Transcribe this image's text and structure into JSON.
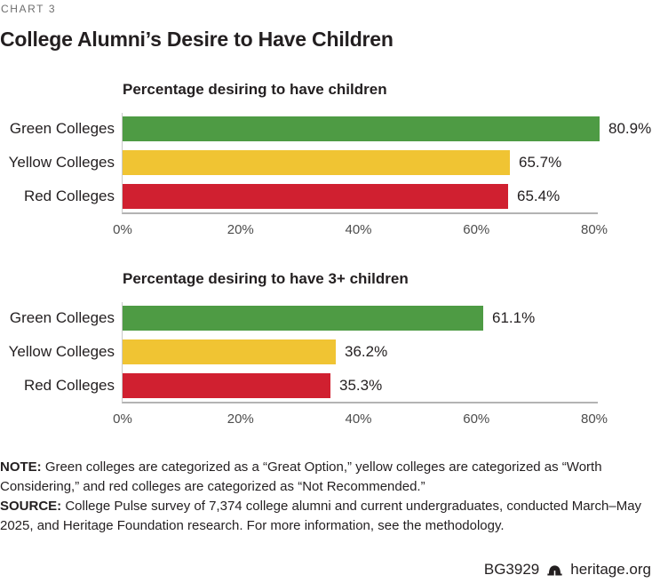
{
  "header": {
    "kicker": "CHART 3",
    "title": "College Alumni’s Desire to Have Children"
  },
  "colors": {
    "green": "#4e9b44",
    "yellow": "#f0c433",
    "red": "#d02030",
    "text": "#231f20",
    "kicker_gray": "#6e6e6e",
    "axis_line": "#b3b3b3",
    "tick_text": "#4c4c4c"
  },
  "chart_data": [
    {
      "type": "bar",
      "orientation": "horizontal",
      "title": "Percentage desiring to have children",
      "categories": [
        "Green Colleges",
        "Yellow Colleges",
        "Red Colleges"
      ],
      "values": [
        80.9,
        65.7,
        65.4
      ],
      "value_labels": [
        "80.9%",
        "65.7%",
        "65.4%"
      ],
      "bar_colors": [
        "#4e9b44",
        "#f0c433",
        "#d02030"
      ],
      "xlim": [
        0,
        80
      ],
      "tick_values": [
        0,
        20,
        40,
        60,
        80
      ],
      "ticks": [
        "0%",
        "20%",
        "40%",
        "60%",
        "80%"
      ],
      "grid": false,
      "legend": "none"
    },
    {
      "type": "bar",
      "orientation": "horizontal",
      "title": "Percentage desiring to have 3+ children",
      "categories": [
        "Green Colleges",
        "Yellow Colleges",
        "Red Colleges"
      ],
      "values": [
        61.1,
        36.2,
        35.3
      ],
      "value_labels": [
        "61.1%",
        "36.2%",
        "35.3%"
      ],
      "bar_colors": [
        "#4e9b44",
        "#f0c433",
        "#d02030"
      ],
      "xlim": [
        0,
        80
      ],
      "tick_values": [
        0,
        20,
        40,
        60,
        80
      ],
      "ticks": [
        "0%",
        "20%",
        "40%",
        "60%",
        "80%"
      ],
      "grid": false,
      "legend": "none"
    }
  ],
  "notes": {
    "note_label": "NOTE:",
    "note_text": "Green colleges are categorized as a “Great Option,” yellow colleges are categorized as “Worth Considering,” and red colleges are categorized as “Not Recommended.”",
    "source_label": "SOURCE:",
    "source_text": "College Pulse survey of 7,374 college alumni and current undergraduates, conducted March–May 2025, and Heritage Foundation research. For more information, see the methodology."
  },
  "footer": {
    "report_id": "BG3929",
    "site": "heritage.org",
    "logo_icon": "heritage-bell-icon"
  }
}
